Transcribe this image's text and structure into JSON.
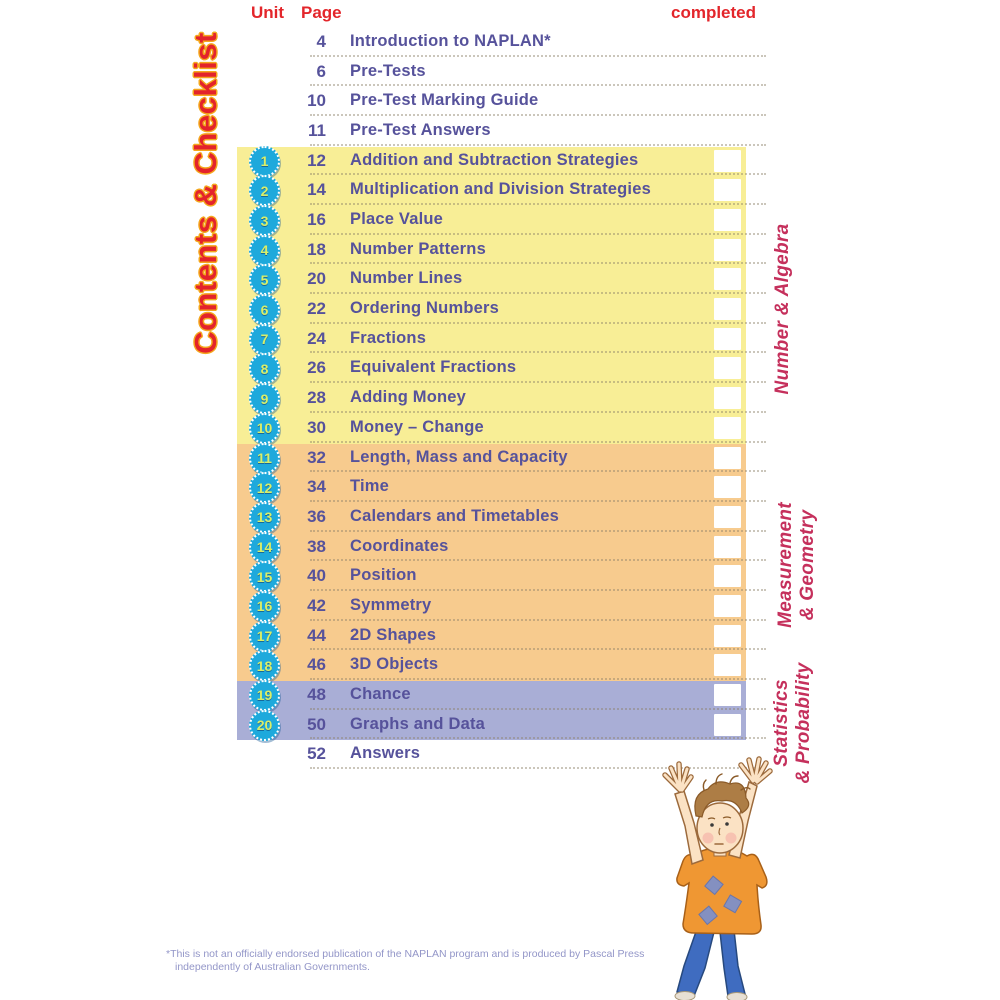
{
  "title": "Contents & Checklist",
  "headers": {
    "unit": "Unit",
    "page": "Page",
    "completed": "completed"
  },
  "rows": [
    {
      "unit": "",
      "page": "4",
      "title": "Introduction to NAPLAN*",
      "band": null,
      "checkbox": false
    },
    {
      "unit": "",
      "page": "6",
      "title": "Pre-Tests",
      "band": null,
      "checkbox": false
    },
    {
      "unit": "",
      "page": "10",
      "title": "Pre-Test Marking Guide",
      "band": null,
      "checkbox": false
    },
    {
      "unit": "",
      "page": "11",
      "title": "Pre-Test Answers",
      "band": null,
      "checkbox": false
    },
    {
      "unit": "1",
      "page": "12",
      "title": "Addition and Subtraction Strategies",
      "band": "yellow",
      "checkbox": true
    },
    {
      "unit": "2",
      "page": "14",
      "title": "Multiplication and Division Strategies",
      "band": "yellow",
      "checkbox": true
    },
    {
      "unit": "3",
      "page": "16",
      "title": "Place Value",
      "band": "yellow",
      "checkbox": true
    },
    {
      "unit": "4",
      "page": "18",
      "title": "Number Patterns",
      "band": "yellow",
      "checkbox": true
    },
    {
      "unit": "5",
      "page": "20",
      "title": "Number Lines",
      "band": "yellow",
      "checkbox": true
    },
    {
      "unit": "6",
      "page": "22",
      "title": "Ordering Numbers",
      "band": "yellow",
      "checkbox": true
    },
    {
      "unit": "7",
      "page": "24",
      "title": "Fractions",
      "band": "yellow",
      "checkbox": true
    },
    {
      "unit": "8",
      "page": "26",
      "title": "Equivalent Fractions",
      "band": "yellow",
      "checkbox": true
    },
    {
      "unit": "9",
      "page": "28",
      "title": "Adding Money",
      "band": "yellow",
      "checkbox": true
    },
    {
      "unit": "10",
      "page": "30",
      "title": "Money – Change",
      "band": "yellow",
      "checkbox": true
    },
    {
      "unit": "11",
      "page": "32",
      "title": "Length, Mass and Capacity",
      "band": "orange",
      "checkbox": true
    },
    {
      "unit": "12",
      "page": "34",
      "title": "Time",
      "band": "orange",
      "checkbox": true
    },
    {
      "unit": "13",
      "page": "36",
      "title": "Calendars and Timetables",
      "band": "orange",
      "checkbox": true
    },
    {
      "unit": "14",
      "page": "38",
      "title": "Coordinates",
      "band": "orange",
      "checkbox": true
    },
    {
      "unit": "15",
      "page": "40",
      "title": "Position",
      "band": "orange",
      "checkbox": true
    },
    {
      "unit": "16",
      "page": "42",
      "title": "Symmetry",
      "band": "orange",
      "checkbox": true
    },
    {
      "unit": "17",
      "page": "44",
      "title": "2D Shapes",
      "band": "orange",
      "checkbox": true
    },
    {
      "unit": "18",
      "page": "46",
      "title": "3D Objects",
      "band": "orange",
      "checkbox": true
    },
    {
      "unit": "19",
      "page": "48",
      "title": "Chance",
      "band": "purple",
      "checkbox": true
    },
    {
      "unit": "20",
      "page": "50",
      "title": "Graphs and Data",
      "band": "purple",
      "checkbox": true
    },
    {
      "unit": "",
      "page": "52",
      "title": "Answers",
      "band": null,
      "checkbox": false
    }
  ],
  "side_labels": [
    {
      "text": "Number & Algebra"
    },
    {
      "text": "Measurement\n& Geometry"
    },
    {
      "text": "Statistics\n& Probability"
    }
  ],
  "footnote": {
    "line1": "*This is not an officially endorsed publication of the NAPLAN program and is produced by Pascal Press",
    "line2": "independently of Australian Governments."
  },
  "colors": {
    "yellow": "#f8ee96",
    "orange": "#f7cb8e",
    "purple": "#a9aed6",
    "header_red": "#e3262b",
    "title_red": "#e3232b",
    "title_outline": "#f4a71d",
    "side_label_red": "#c5305c",
    "row_text": "#56529b",
    "badge_blue": "#1ea9dc",
    "badge_number_green": "#d9ee69",
    "checkbox_white": "#ffffff"
  }
}
